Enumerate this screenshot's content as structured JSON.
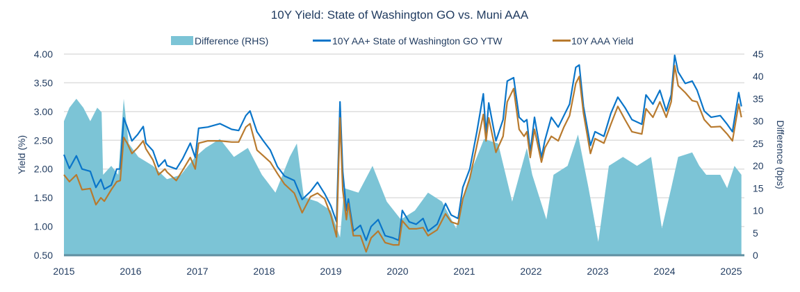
{
  "chart_data": {
    "type": "line",
    "title": "10Y Yield: State of Washington GO vs. Muni AAA",
    "ylabel": "Yield (%)",
    "y2label": "Difference (bps)",
    "xlabel": "",
    "xlim": [
      "2015-01-01",
      "2025-02-26"
    ],
    "ylim": [
      0.5,
      4.0
    ],
    "y2lim": [
      0,
      45
    ],
    "x_ticks": [
      "2015",
      "2016",
      "2017",
      "2018",
      "2019",
      "2020",
      "2021",
      "2022",
      "2023",
      "2024",
      "2025"
    ],
    "y_ticks": [
      "0.50",
      "1.00",
      "1.50",
      "2.00",
      "2.50",
      "3.00",
      "3.50",
      "4.00"
    ],
    "y2_ticks": [
      "0",
      "5",
      "10",
      "15",
      "20",
      "25",
      "30",
      "35",
      "40",
      "45"
    ],
    "grid": true,
    "legend_position": "top",
    "colors": {
      "difference": "#7cc4d6",
      "go": "#0a75c9",
      "aaa": "#b87a2e",
      "text": "#1f3a5f"
    },
    "series": [
      {
        "name": "Difference (RHS)",
        "type": "area",
        "axis": "right",
        "dates": [
          "2015-01-01",
          "2015-01-31",
          "2015-03-10",
          "2015-04-17",
          "2015-05-25",
          "2015-07-02",
          "2015-07-26",
          "2015-08-03",
          "2015-09-17",
          "2015-10-25",
          "2015-11-24",
          "2015-12-21",
          "2016-02-12",
          "2016-05-02",
          "2016-07-18",
          "2016-10-03",
          "2016-12-20",
          "2017-02-15",
          "2017-05-04",
          "2017-07-20",
          "2017-10-04",
          "2017-12-20",
          "2018-03-04",
          "2018-05-21",
          "2018-06-29",
          "2018-08-06",
          "2018-10-20",
          "2019-01-01",
          "2019-02-20",
          "2019-03-15",
          "2019-06-01",
          "2019-08-17",
          "2019-11-03",
          "2020-01-19",
          "2020-04-05",
          "2020-06-16",
          "2020-09-01",
          "2020-11-17",
          "2021-01-31",
          "2021-04-19",
          "2021-07-05",
          "2021-09-20",
          "2021-12-09",
          "2022-01-08",
          "2022-03-26",
          "2022-05-04",
          "2022-07-20",
          "2022-09-15",
          "2022-11-12",
          "2023-01-04",
          "2023-03-03",
          "2023-05-19",
          "2023-08-04",
          "2023-10-20",
          "2023-12-18",
          "2024-02-07",
          "2024-03-16",
          "2024-06-01",
          "2024-07-10",
          "2024-08-17",
          "2024-11-02",
          "2024-12-10",
          "2025-01-19",
          "2025-02-26"
        ],
        "values": [
          30,
          33,
          35,
          33,
          30,
          33,
          32,
          18,
          20,
          18,
          35,
          25,
          22,
          20,
          17,
          18,
          22,
          24,
          26,
          22,
          24,
          18,
          14,
          22,
          25,
          13,
          12,
          10,
          4,
          15,
          14,
          20,
          12,
          8,
          10,
          14,
          12,
          6,
          18,
          26,
          25,
          12,
          24,
          18,
          8,
          18,
          20,
          27,
          15,
          3,
          20,
          22,
          20,
          22,
          6,
          15,
          22,
          23,
          20,
          18,
          18,
          15,
          20,
          18
        ]
      },
      {
        "name": "10Y AA+ State of Washington GO YTW",
        "type": "line",
        "axis": "left",
        "dates": [
          "2015-01-01",
          "2015-01-31",
          "2015-03-10",
          "2015-04-10",
          "2015-05-25",
          "2015-06-25",
          "2015-07-22",
          "2015-08-10",
          "2015-09-17",
          "2015-10-17",
          "2015-11-05",
          "2015-11-24",
          "2015-12-13",
          "2016-01-08",
          "2016-02-08",
          "2016-03-10",
          "2016-03-25",
          "2016-05-02",
          "2016-06-02",
          "2016-07-07",
          "2016-07-18",
          "2016-09-07",
          "2016-10-12",
          "2016-11-23",
          "2016-12-20",
          "2017-01-08",
          "2017-02-27",
          "2017-05-04",
          "2017-07-08",
          "2017-08-15",
          "2017-09-23",
          "2017-10-16",
          "2017-11-23",
          "2017-12-28",
          "2018-02-04",
          "2018-03-15",
          "2018-04-22",
          "2018-06-15",
          "2018-07-28",
          "2018-09-12",
          "2018-10-20",
          "2018-11-28",
          "2019-01-01",
          "2019-02-01",
          "2019-02-20",
          "2019-03-07",
          "2019-03-27",
          "2019-04-07",
          "2019-05-04",
          "2019-06-12",
          "2019-07-13",
          "2019-08-09",
          "2019-09-17",
          "2019-10-25",
          "2019-12-08",
          "2020-01-08",
          "2020-01-27",
          "2020-03-05",
          "2020-04-12",
          "2020-05-20",
          "2020-06-16",
          "2020-08-05",
          "2020-09-20",
          "2020-10-21",
          "2020-11-28",
          "2020-12-24",
          "2021-01-31",
          "2021-03-11",
          "2021-04-15",
          "2021-04-30",
          "2021-05-15",
          "2021-06-23",
          "2021-08-01",
          "2021-08-24",
          "2021-09-28",
          "2021-10-28",
          "2021-11-24",
          "2021-12-09",
          "2021-12-28",
          "2022-01-20",
          "2022-02-27",
          "2022-03-18",
          "2022-04-22",
          "2022-05-30",
          "2022-06-30",
          "2022-07-31",
          "2022-09-03",
          "2022-09-22",
          "2022-10-15",
          "2022-11-22",
          "2022-12-17",
          "2023-02-04",
          "2023-03-14",
          "2023-04-21",
          "2023-05-30",
          "2023-07-07",
          "2023-08-30",
          "2023-09-22",
          "2023-10-30",
          "2023-12-07",
          "2024-01-11",
          "2024-02-07",
          "2024-02-26",
          "2024-03-16",
          "2024-04-24",
          "2024-06-01",
          "2024-06-28",
          "2024-08-06",
          "2024-09-13",
          "2024-11-02",
          "2024-12-10",
          "2025-01-08",
          "2025-02-11",
          "2025-02-26"
        ],
        "values": [
          2.25,
          2.01,
          2.23,
          2.0,
          1.96,
          1.68,
          1.82,
          1.65,
          1.72,
          2.0,
          2.0,
          2.89,
          2.73,
          2.49,
          2.6,
          2.74,
          2.45,
          2.32,
          2.04,
          2.16,
          2.06,
          2.0,
          2.18,
          2.45,
          2.2,
          2.71,
          2.73,
          2.79,
          2.69,
          2.67,
          2.93,
          3.01,
          2.65,
          2.49,
          2.33,
          2.04,
          1.88,
          1.8,
          1.47,
          1.61,
          1.77,
          1.57,
          1.36,
          1.08,
          3.17,
          1.96,
          1.28,
          1.48,
          0.92,
          1.02,
          0.76,
          1.0,
          1.12,
          0.84,
          0.8,
          0.76,
          1.28,
          1.08,
          1.04,
          1.14,
          0.92,
          1.04,
          1.4,
          1.2,
          1.14,
          1.68,
          2.0,
          2.65,
          3.31,
          2.61,
          3.15,
          2.49,
          2.86,
          3.53,
          3.59,
          2.9,
          2.82,
          2.86,
          2.29,
          2.9,
          2.2,
          2.5,
          2.9,
          2.73,
          2.93,
          3.13,
          3.77,
          3.81,
          3.09,
          2.41,
          2.65,
          2.57,
          2.97,
          3.25,
          3.07,
          2.86,
          2.78,
          3.29,
          3.13,
          3.37,
          3.01,
          3.29,
          3.98,
          3.69,
          3.49,
          3.53,
          3.37,
          3.01,
          2.9,
          2.93,
          2.78,
          2.65,
          3.33,
          3.09
        ]
      },
      {
        "name": "10Y AAA Yield",
        "type": "line",
        "axis": "left",
        "dates": [
          "2015-01-01",
          "2015-01-31",
          "2015-03-10",
          "2015-04-10",
          "2015-05-25",
          "2015-06-25",
          "2015-07-22",
          "2015-08-10",
          "2015-09-17",
          "2015-10-17",
          "2015-11-05",
          "2015-11-24",
          "2015-12-13",
          "2016-01-08",
          "2016-02-08",
          "2016-03-10",
          "2016-03-25",
          "2016-05-02",
          "2016-06-02",
          "2016-07-07",
          "2016-07-18",
          "2016-09-07",
          "2016-10-12",
          "2016-11-23",
          "2016-12-20",
          "2017-01-08",
          "2017-02-27",
          "2017-05-04",
          "2017-07-08",
          "2017-08-15",
          "2017-09-23",
          "2017-10-16",
          "2017-11-23",
          "2017-12-28",
          "2018-02-04",
          "2018-03-15",
          "2018-04-22",
          "2018-06-15",
          "2018-07-28",
          "2018-09-12",
          "2018-10-20",
          "2018-11-28",
          "2019-01-01",
          "2019-02-01",
          "2019-02-20",
          "2019-03-07",
          "2019-03-27",
          "2019-04-07",
          "2019-05-04",
          "2019-06-12",
          "2019-07-13",
          "2019-08-09",
          "2019-09-17",
          "2019-10-25",
          "2019-12-08",
          "2020-01-08",
          "2020-01-27",
          "2020-03-05",
          "2020-04-12",
          "2020-05-20",
          "2020-06-16",
          "2020-08-05",
          "2020-09-20",
          "2020-10-21",
          "2020-11-28",
          "2020-12-24",
          "2021-01-31",
          "2021-03-11",
          "2021-04-15",
          "2021-04-30",
          "2021-05-15",
          "2021-06-23",
          "2021-08-01",
          "2021-08-24",
          "2021-09-28",
          "2021-10-28",
          "2021-11-24",
          "2021-12-09",
          "2021-12-28",
          "2022-01-20",
          "2022-02-27",
          "2022-03-18",
          "2022-04-22",
          "2022-05-30",
          "2022-06-30",
          "2022-07-31",
          "2022-09-03",
          "2022-09-22",
          "2022-10-15",
          "2022-11-22",
          "2022-12-17",
          "2023-02-04",
          "2023-03-14",
          "2023-04-21",
          "2023-05-30",
          "2023-07-07",
          "2023-08-30",
          "2023-09-22",
          "2023-10-30",
          "2023-12-07",
          "2024-01-11",
          "2024-02-07",
          "2024-02-26",
          "2024-03-16",
          "2024-04-24",
          "2024-06-01",
          "2024-06-28",
          "2024-08-06",
          "2024-09-13",
          "2024-11-02",
          "2024-12-10",
          "2025-01-08",
          "2025-02-11",
          "2025-02-26"
        ],
        "values": [
          1.9,
          1.78,
          1.9,
          1.64,
          1.66,
          1.38,
          1.5,
          1.44,
          1.64,
          1.78,
          1.8,
          2.55,
          2.45,
          2.27,
          2.37,
          2.49,
          2.35,
          2.16,
          1.9,
          2.0,
          1.95,
          1.8,
          1.98,
          2.2,
          2.0,
          2.45,
          2.49,
          2.49,
          2.47,
          2.47,
          2.73,
          2.79,
          2.33,
          2.23,
          2.12,
          1.92,
          1.74,
          1.58,
          1.24,
          1.52,
          1.58,
          1.48,
          1.2,
          0.82,
          2.89,
          1.64,
          1.12,
          1.4,
          0.84,
          0.84,
          0.56,
          0.8,
          0.92,
          0.72,
          0.68,
          0.68,
          1.1,
          0.96,
          0.96,
          0.98,
          0.84,
          0.94,
          1.22,
          1.08,
          1.04,
          1.48,
          1.84,
          2.41,
          2.95,
          2.49,
          2.89,
          2.29,
          2.57,
          3.17,
          3.4,
          2.69,
          2.57,
          2.65,
          2.2,
          2.69,
          2.12,
          2.37,
          2.57,
          2.49,
          2.73,
          2.93,
          3.49,
          3.61,
          2.97,
          2.27,
          2.53,
          2.45,
          2.78,
          3.09,
          2.86,
          2.65,
          2.61,
          3.05,
          2.9,
          3.17,
          2.9,
          3.17,
          3.8,
          3.45,
          3.33,
          3.19,
          3.17,
          2.86,
          2.73,
          2.74,
          2.61,
          2.49,
          3.13,
          2.9
        ]
      }
    ]
  }
}
